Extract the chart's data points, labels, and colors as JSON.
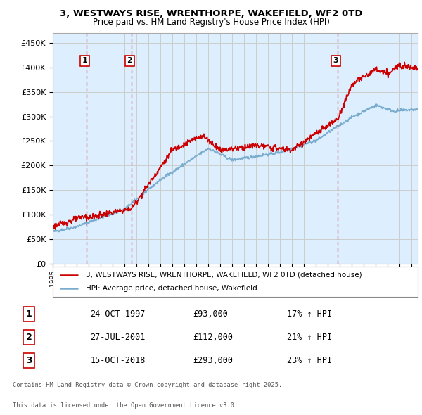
{
  "title_line1": "3, WESTWAYS RISE, WRENTHORPE, WAKEFIELD, WF2 0TD",
  "title_line2": "Price paid vs. HM Land Registry's House Price Index (HPI)",
  "legend_line1": "3, WESTWAYS RISE, WRENTHORPE, WAKEFIELD, WF2 0TD (detached house)",
  "legend_line2": "HPI: Average price, detached house, Wakefield",
  "sale1": {
    "label": "1",
    "date": "24-OCT-1997",
    "price": 93000,
    "hpi_pct": "17% ↑ HPI",
    "x": 1997.82
  },
  "sale2": {
    "label": "2",
    "date": "27-JUL-2001",
    "price": 112000,
    "hpi_pct": "21% ↑ HPI",
    "x": 2001.58
  },
  "sale3": {
    "label": "3",
    "date": "15-OCT-2018",
    "price": 293000,
    "hpi_pct": "23% ↑ HPI",
    "x": 2018.79
  },
  "footnote_line1": "Contains HM Land Registry data © Crown copyright and database right 2025.",
  "footnote_line2": "This data is licensed under the Open Government Licence v3.0.",
  "ylim": [
    0,
    470000
  ],
  "yticks": [
    0,
    50000,
    100000,
    150000,
    200000,
    250000,
    300000,
    350000,
    400000,
    450000
  ],
  "xlim": [
    1995,
    2025.5
  ],
  "red_color": "#cc0000",
  "blue_color": "#7aacce",
  "vline_color": "#cc0000",
  "grid_color": "#cccccc",
  "bg_color": "#ddeeff",
  "plot_bg": "#ffffff",
  "marker_box_color": "#cc0000"
}
